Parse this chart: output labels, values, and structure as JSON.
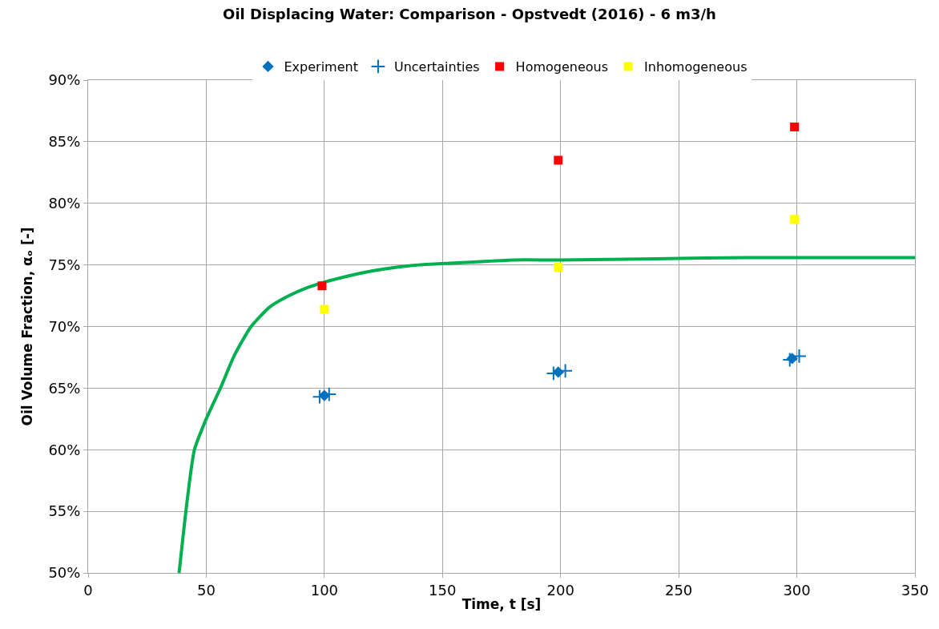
{
  "chart_data": {
    "type": "scatter",
    "title": "Oil Displacing Water: Comparison - Opstvedt (2016) - 6 m3/h",
    "xlabel": "Time, t [s]",
    "ylabel": "Oil Volume Fraction, αₒ [-]",
    "xlim": [
      0,
      350
    ],
    "xticks": [
      0,
      50,
      100,
      150,
      200,
      250,
      300,
      350
    ],
    "ylim": [
      50,
      90
    ],
    "yticks": [
      {
        "value": 50,
        "label": "50%"
      },
      {
        "value": 55,
        "label": "55%"
      },
      {
        "value": 60,
        "label": "60%"
      },
      {
        "value": 65,
        "label": "65%"
      },
      {
        "value": 70,
        "label": "70%"
      },
      {
        "value": 75,
        "label": "75%"
      },
      {
        "value": 80,
        "label": "80%"
      },
      {
        "value": 85,
        "label": "85%"
      },
      {
        "value": 90,
        "label": "90%"
      }
    ],
    "grid": true,
    "legend": "top",
    "series": [
      {
        "name": "Experiment",
        "marker": "diamond",
        "color": "#0070c0",
        "x": [
          100,
          199,
          298
        ],
        "values": [
          64.4,
          66.3,
          67.4
        ]
      },
      {
        "name": "Uncertainties",
        "marker": "cross",
        "color": "#0070c0",
        "x": [
          98,
          102,
          197,
          202,
          297,
          301
        ],
        "values": [
          64.3,
          64.5,
          66.2,
          66.4,
          67.3,
          67.6
        ]
      },
      {
        "type": "line",
        "marker": "none",
        "line_style": "solid",
        "color": "#00b050",
        "x": [
          38.5,
          42,
          45,
          50,
          56,
          62,
          69,
          77,
          85,
          92,
          100,
          110,
          120,
          130,
          140,
          160,
          180,
          200,
          240,
          280,
          350
        ],
        "values": [
          50,
          56,
          60,
          62.5,
          65,
          67.7,
          70,
          71.6,
          72.5,
          73.1,
          73.6,
          74.1,
          74.5,
          74.8,
          75,
          75.2,
          75.4,
          75.4,
          75.5,
          75.6,
          75.6
        ]
      },
      {
        "name": "Homogeneous",
        "marker": "square",
        "color": "#ff0000",
        "x": [
          99,
          199,
          299
        ],
        "values": [
          73.3,
          83.5,
          86.2
        ]
      },
      {
        "name": "Inhomogeneous",
        "marker": "square",
        "color": "#ffff00",
        "x": [
          100,
          199,
          299
        ],
        "values": [
          71.4,
          74.8,
          78.7
        ]
      }
    ]
  }
}
